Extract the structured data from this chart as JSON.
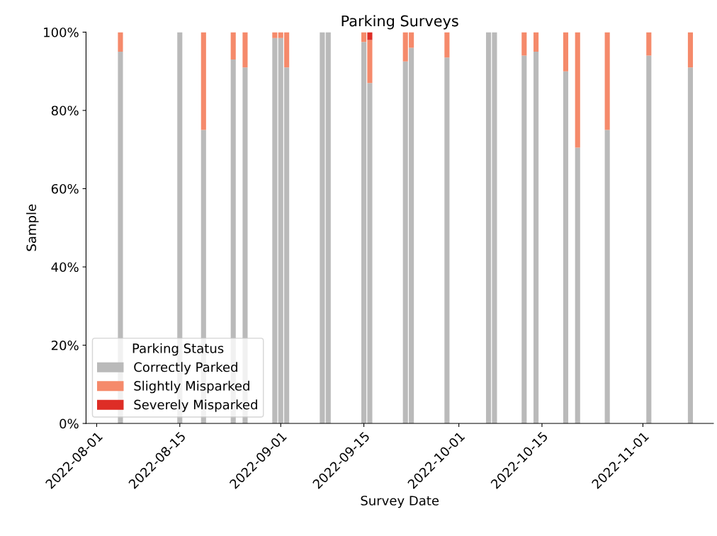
{
  "chart_data": {
    "type": "bar",
    "stacked": true,
    "title": "Parking Surveys",
    "xlabel": "Survey Date",
    "ylabel": "Sample",
    "legend_title": "Parking Status",
    "legend": "bottom left",
    "grid": false,
    "x": [
      "2022-08-05",
      "2022-08-15",
      "2022-08-19",
      "2022-08-24",
      "2022-08-26",
      "2022-08-31",
      "2022-09-01",
      "2022-09-02",
      "2022-09-08",
      "2022-09-09",
      "2022-09-15",
      "2022-09-16",
      "2022-09-22",
      "2022-09-23",
      "2022-09-29",
      "2022-10-06",
      "2022-10-07",
      "2022-10-12",
      "2022-10-14",
      "2022-10-19",
      "2022-10-21",
      "2022-10-26",
      "2022-11-02",
      "2022-11-09"
    ],
    "series": [
      {
        "name": "Correctly Parked",
        "color": "#bababa",
        "values": [
          95,
          100,
          75,
          93,
          91,
          98.5,
          98.5,
          91,
          100,
          100,
          97.5,
          87,
          92.5,
          96,
          93.5,
          100,
          100,
          94,
          95,
          90,
          70.5,
          75,
          94,
          91
        ]
      },
      {
        "name": "Slightly Misparked",
        "color": "#f58a6b",
        "values": [
          5,
          null,
          25,
          7,
          9,
          1.5,
          1.5,
          9,
          null,
          null,
          2.5,
          11,
          7.5,
          4,
          6.5,
          null,
          null,
          6,
          5,
          10,
          29.5,
          25,
          6,
          9
        ]
      },
      {
        "name": "Severely Misparked",
        "color": "#de2d26",
        "values": [
          null,
          null,
          null,
          null,
          null,
          null,
          null,
          null,
          null,
          null,
          null,
          2,
          null,
          null,
          null,
          null,
          null,
          null,
          null,
          null,
          null,
          null,
          null,
          null
        ]
      }
    ],
    "xlim": [
      "2022-07-30T05:00",
      "2022-11-12T21:00"
    ],
    "xticks": [
      "2022-08-01",
      "2022-08-15",
      "2022-09-01",
      "2022-09-15",
      "2022-10-01",
      "2022-10-15",
      "2022-11-01"
    ],
    "ylim": [
      0,
      100
    ],
    "yticks": [
      {
        "value": 0,
        "label": "0%"
      },
      {
        "value": 20,
        "label": "20%"
      },
      {
        "value": 40,
        "label": "40%"
      },
      {
        "value": 60,
        "label": "60%"
      },
      {
        "value": 80,
        "label": "80%"
      },
      {
        "value": 100,
        "label": "100%"
      }
    ]
  }
}
